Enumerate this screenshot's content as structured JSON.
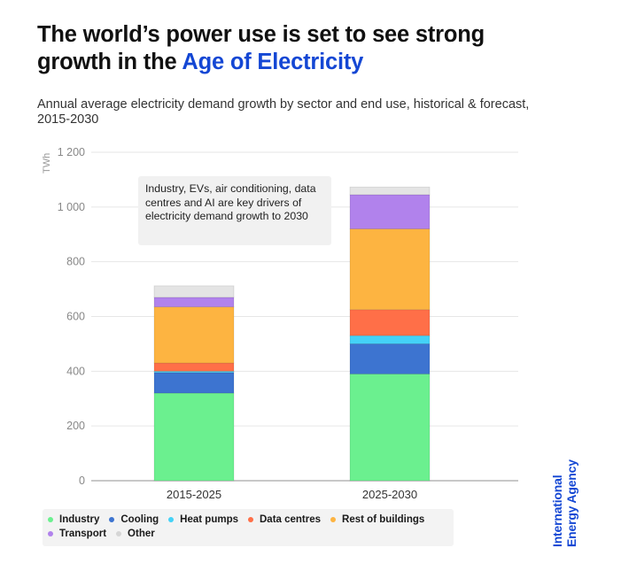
{
  "header": {
    "title_prefix": "The world’s power use is set to see strong growth in the ",
    "title_accent": "Age of Electricity",
    "subtitle": "Annual average electricity demand growth by sector and end use, historical & forecast, 2015-2030"
  },
  "annotation": "Industry, EVs, air conditioning, data centres and AI are key drivers of electricity demand growth to 2030",
  "logo": {
    "line1": "International",
    "line2": "Energy Agency"
  },
  "colors": {
    "accent": "#1447d4"
  },
  "chart_data": {
    "type": "bar",
    "stacked": true,
    "title": "The world’s power use is set to see strong growth in the Age of Electricity",
    "subtitle": "Annual average electricity demand growth by sector and end use, historical & forecast, 2015-2030",
    "xlabel": "",
    "ylabel": "TWh",
    "ylim": [
      0,
      1200
    ],
    "yticks": [
      0,
      200,
      400,
      600,
      800,
      1000,
      1200
    ],
    "ytick_labels": [
      "0",
      "200",
      "400",
      "600",
      "800",
      "1 000",
      "1 200"
    ],
    "grid": true,
    "legend_position": "bottom",
    "categories": [
      "2015-2025",
      "2025-2030"
    ],
    "series": [
      {
        "name": "Industry",
        "color": "#6bf08f",
        "values": [
          320,
          390
        ]
      },
      {
        "name": "Cooling",
        "color": "#3d74d0",
        "values": [
          75,
          110
        ]
      },
      {
        "name": "Heat pumps",
        "color": "#44d2f7",
        "values": [
          5,
          30
        ]
      },
      {
        "name": "Data centres",
        "color": "#ff6f48",
        "values": [
          30,
          95
        ]
      },
      {
        "name": "Rest of buildings",
        "color": "#fdb441",
        "values": [
          205,
          295
        ]
      },
      {
        "name": "Transport",
        "color": "#b182ec",
        "values": [
          35,
          125
        ]
      },
      {
        "name": "Other",
        "color": "#e4e4e4",
        "values": [
          42,
          28
        ]
      }
    ]
  }
}
